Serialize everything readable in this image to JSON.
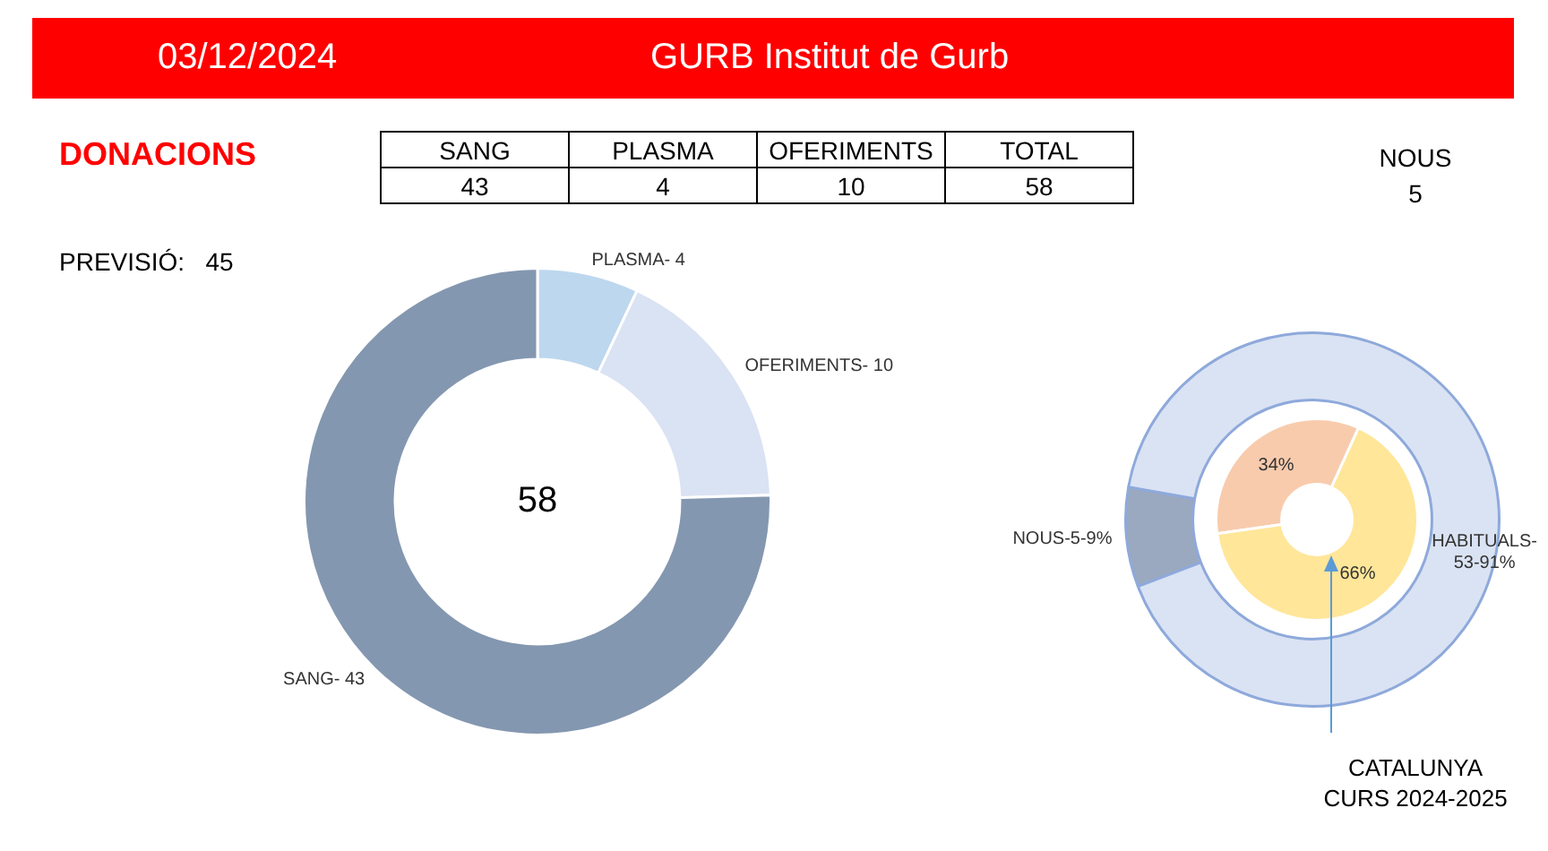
{
  "chart_data": [
    {
      "type": "other",
      "title": "GURB Institut de Gurb",
      "subtitle": "03/12/2024",
      "annotations": [
        "DONACIONS",
        "PREVISIÓ:   45",
        "SANG",
        "PLASMA",
        "OFERIMENTS",
        "TOTAL",
        "43",
        "4",
        "10",
        "58",
        "NOUS",
        "5"
      ]
    },
    {
      "type": "donut",
      "categories": [
        "PLASMA-",
        "OFERIMENTS-",
        "SANG-"
      ],
      "values": [
        4,
        10,
        43
      ],
      "colors": [
        "#bdd7ee",
        "#dae3f3",
        "#8497b0"
      ],
      "value_labels": [
        "4",
        "10",
        "43"
      ],
      "annotations": [
        "58"
      ]
    },
    {
      "type": "donut",
      "categories": [
        "NOUS-",
        "HABITUALS-"
      ],
      "values": [
        5,
        53
      ],
      "colors": [
        "#9aa9bf",
        "#dae3f3"
      ],
      "value_labels": [
        "5-9%",
        "53-91%"
      ]
    },
    {
      "type": "donut",
      "categories": [
        null,
        null
      ],
      "values": [
        34,
        66
      ],
      "colors": [
        "#f8cbad",
        "#ffe699"
      ],
      "value_labels": [
        "34%",
        "66%"
      ],
      "annotations": [
        "CATALUNYA CURS 2024-2025"
      ]
    }
  ]
}
